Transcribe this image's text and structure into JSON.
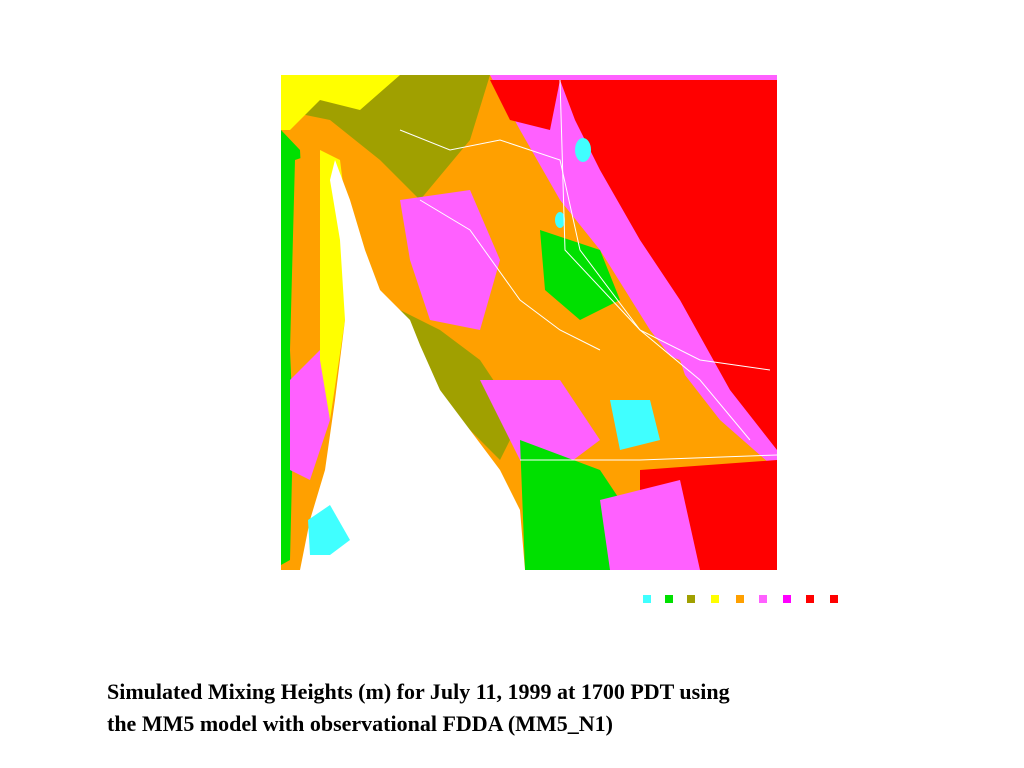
{
  "caption": {
    "lines": [
      "Simulated Mixing Heights (m) for July 11, 1999 at 1700 PDT using",
      "the MM5 model with observational FDDA (MM5_N1)"
    ]
  }
}
